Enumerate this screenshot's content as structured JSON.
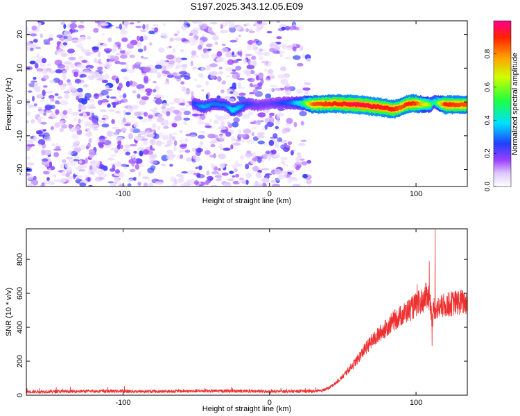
{
  "title": "S197.2025.343.12.05.E09",
  "chart_data": [
    {
      "type": "heatmap",
      "xlabel": "Height of straight line (km)",
      "ylabel": "Frequency (Hz)",
      "xlim": [
        -166,
        135
      ],
      "ylim": [
        -25,
        24
      ],
      "xticks": [
        -100,
        0,
        100
      ],
      "yticks": [
        -20,
        -10,
        0,
        10,
        20
      ],
      "xtick_labels": [
        "-100",
        "0",
        "100"
      ],
      "ytick_labels": [
        "-20",
        "-10",
        "0",
        "10",
        "20"
      ],
      "grid": false,
      "colorbar": {
        "label": "Normalized spectral amplitude",
        "range": [
          0,
          1
        ],
        "ticks": [
          0,
          0.2,
          0.4,
          0.6,
          0.8
        ],
        "tick_labels": [
          "0.0",
          "0.2",
          "0.4",
          "0.6",
          "0.8"
        ],
        "colormap": "rainbow-white-to-magenta-red"
      },
      "ridge": {
        "x": [
          -52,
          -45,
          -38,
          -30,
          -25,
          -20,
          -15,
          -8,
          0,
          8,
          15,
          22,
          30,
          45,
          60,
          75,
          85,
          90,
          95,
          100,
          105,
          110,
          112,
          120,
          135
        ],
        "y": [
          -0.5,
          -1.5,
          -0.5,
          -1,
          -2.5,
          -1.5,
          -0.5,
          -1,
          -0.5,
          -0.3,
          -0.3,
          -0.3,
          -0.7,
          -0.5,
          -0.8,
          -1.5,
          -2.2,
          -1.5,
          -0.5,
          -0.5,
          -0.7,
          -0.8,
          0,
          -0.8,
          -0.8
        ],
        "amplitude": [
          0.25,
          0.35,
          0.3,
          0.3,
          0.4,
          0.35,
          0.25,
          0.2,
          0.2,
          0.25,
          0.3,
          0.45,
          0.85,
          0.9,
          0.95,
          0.92,
          0.9,
          0.85,
          0.9,
          0.88,
          0.7,
          0.6,
          0.4,
          0.9,
          0.85
        ]
      },
      "noise_region_x": [
        -166,
        27
      ]
    },
    {
      "type": "line",
      "xlabel": "Height of straight line (km)",
      "ylabel": "SNR (10 * v/v)",
      "xlim": [
        -166,
        135
      ],
      "ylim": [
        0,
        980
      ],
      "xticks": [
        -100,
        0,
        100
      ],
      "yticks": [
        0,
        200,
        400,
        600,
        800
      ],
      "xtick_labels": [
        "-100",
        "0",
        "100"
      ],
      "ytick_labels": [
        "0",
        "200",
        "400",
        "600",
        "800"
      ],
      "grid": false,
      "line_color": "#ee3030",
      "series": [
        {
          "x": [
            -166,
            -140,
            -120,
            -100,
            -80,
            -60,
            -40,
            -20,
            0,
            20,
            35,
            40,
            45,
            50,
            55,
            60,
            65,
            70,
            75,
            80,
            85,
            90,
            95,
            100,
            105,
            108,
            110,
            111,
            112,
            115,
            120,
            125,
            130,
            135
          ],
          "y": [
            20,
            22,
            24,
            23,
            22,
            24,
            25,
            24,
            22,
            23,
            24,
            40,
            70,
            110,
            160,
            210,
            270,
            320,
            360,
            400,
            440,
            470,
            500,
            530,
            560,
            600,
            520,
            420,
            520,
            510,
            530,
            540,
            550,
            545
          ]
        }
      ],
      "spikes": [
        {
          "x": 109,
          "y": 790
        },
        {
          "x": 113,
          "y": 980
        },
        {
          "x": 111,
          "y": 290
        }
      ]
    }
  ]
}
